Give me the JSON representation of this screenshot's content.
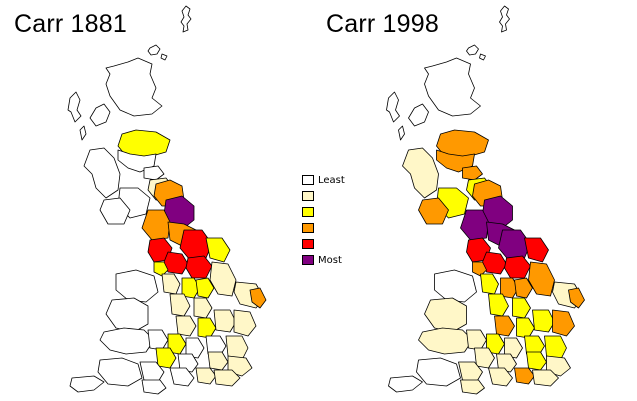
{
  "maps": {
    "left": {
      "title": "Carr 1881"
    },
    "right": {
      "title": "Carr 1998"
    }
  },
  "legend": {
    "items": [
      {
        "label": "Least",
        "color": "#ffffff"
      },
      {
        "label": "",
        "color": "#fff7c8"
      },
      {
        "label": "",
        "color": "#ffff00"
      },
      {
        "label": "",
        "color": "#ff9900"
      },
      {
        "label": "",
        "color": "#ff0000"
      },
      {
        "label": "Most",
        "color": "#800080"
      }
    ]
  },
  "colors": {
    "least": "#ffffff",
    "pale": "#fff7c8",
    "yellow": "#ffff00",
    "orange": "#ff9900",
    "red": "#ff0000",
    "purple": "#800080",
    "outline": "#000000"
  }
}
